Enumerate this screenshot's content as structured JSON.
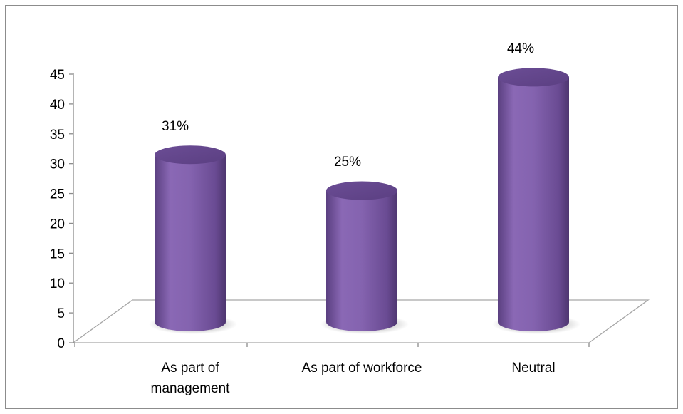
{
  "chart_data": {
    "type": "bar",
    "style": "3d-cylinder",
    "categories": [
      "As part of\nmanagement",
      "As part of workforce",
      "Neutral"
    ],
    "values": [
      31,
      25,
      44
    ],
    "data_labels": [
      "31%",
      "25%",
      "44%"
    ],
    "ylim": [
      0,
      45
    ],
    "yticks": [
      0,
      5,
      10,
      15,
      20,
      25,
      30,
      35,
      40,
      45
    ],
    "grid": false,
    "legend": "none",
    "bar_color": "#7d5ba6",
    "title": "",
    "xlabel": "",
    "ylabel": ""
  }
}
